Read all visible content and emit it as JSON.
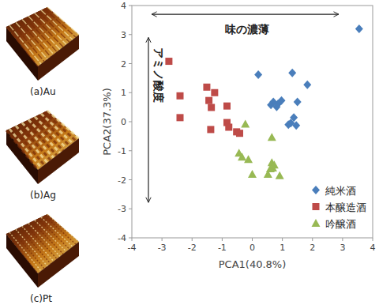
{
  "images": [
    {
      "label": "(a)Au"
    },
    {
      "label": "(b)Ag"
    },
    {
      "label": "(c)Pt"
    }
  ],
  "chart_data": {
    "type": "scatter",
    "x_label": "PCA1(40.8%)",
    "y_label": "PCA2(37.3%)",
    "xlim": [
      -4,
      4
    ],
    "ylim": [
      -4,
      4
    ],
    "xticks": [
      -4,
      -3,
      -2,
      -1,
      0,
      1,
      2,
      3,
      4
    ],
    "yticks": [
      -4,
      -3,
      -2,
      -1,
      0,
      1,
      2,
      3,
      4
    ],
    "grid": false,
    "legend": "lower right",
    "annotations": [
      {
        "text": "味の濃薄",
        "x": -0.18,
        "y": 3.19,
        "arrow": {
          "x": [
            -3.34,
            2.87
          ],
          "y": [
            3.7,
            3.7
          ]
        }
      },
      {
        "text": "アミノ酸度",
        "x": -3.1,
        "y": 1.6,
        "arrow": {
          "x": [
            -3.45,
            -3.45
          ],
          "y": [
            2.9,
            -2.78
          ]
        }
      }
    ],
    "series": [
      {
        "name": "純米酒",
        "color": "#4a7ebb",
        "marker": "diamond",
        "x": [
          3.55,
          0.2,
          1.33,
          1.83,
          1.5,
          0.97,
          0.86,
          0.7,
          0.81,
          1.28,
          1.38,
          1.2,
          1.46,
          0.62
        ],
        "values": [
          3.2,
          1.62,
          1.68,
          1.27,
          0.68,
          0.73,
          0.62,
          0.68,
          0.51,
          -0.05,
          0.14,
          -0.1,
          -0.13,
          0.58
        ]
      },
      {
        "name": "本醸造酒",
        "color": "#be4b48",
        "marker": "square",
        "x": [
          -2.77,
          -2.4,
          -2.4,
          -1.51,
          -1.25,
          -1.44,
          -1.36,
          -1.38,
          -0.84,
          -0.84,
          -0.78,
          -0.52,
          -0.42
        ],
        "values": [
          2.08,
          0.89,
          0.14,
          1.19,
          1.0,
          0.73,
          0.49,
          -0.27,
          0.54,
          -0.03,
          -0.19,
          -0.35,
          -0.4
        ]
      },
      {
        "name": "吟醸酒",
        "color": "#98b954",
        "marker": "triangle",
        "x": [
          -0.23,
          -0.44,
          -0.34,
          -0.13,
          0.0,
          0.65,
          0.65,
          0.68,
          0.6,
          0.73,
          0.52,
          0.91
        ],
        "values": [
          -0.08,
          -1.08,
          -1.22,
          -1.3,
          -1.81,
          -0.54,
          -1.41,
          -1.59,
          -1.62,
          -1.49,
          -1.81,
          -1.86
        ]
      }
    ]
  }
}
